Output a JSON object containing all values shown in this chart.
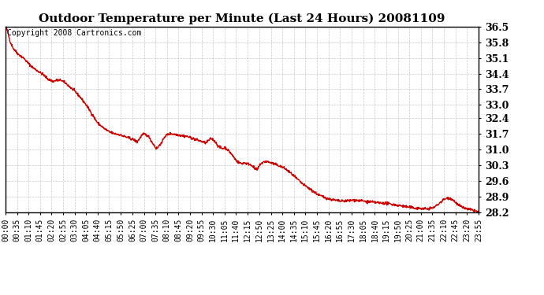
{
  "title": "Outdoor Temperature per Minute (Last 24 Hours) 20081109",
  "copyright_text": "Copyright 2008 Cartronics.com",
  "line_color": "#cc0000",
  "bg_color": "#ffffff",
  "plot_bg_color": "#ffffff",
  "grid_color": "#bbbbbb",
  "ylim": [
    28.2,
    36.5
  ],
  "yticks": [
    28.2,
    28.9,
    29.6,
    30.3,
    31.0,
    31.7,
    32.4,
    33.0,
    33.7,
    34.4,
    35.1,
    35.8,
    36.5
  ],
  "xtick_labels": [
    "00:00",
    "00:35",
    "01:10",
    "01:45",
    "02:20",
    "02:55",
    "03:30",
    "04:05",
    "04:40",
    "05:15",
    "05:50",
    "06:25",
    "07:00",
    "07:35",
    "08:10",
    "08:45",
    "09:20",
    "09:55",
    "10:30",
    "11:05",
    "11:40",
    "12:15",
    "12:50",
    "13:25",
    "14:00",
    "14:35",
    "15:10",
    "15:45",
    "16:20",
    "16:55",
    "17:30",
    "18:05",
    "18:40",
    "19:15",
    "19:50",
    "20:25",
    "21:00",
    "21:35",
    "22:10",
    "22:45",
    "23:20",
    "23:55"
  ],
  "line_width": 1.0,
  "title_fontsize": 11,
  "ytick_fontsize": 9,
  "xtick_fontsize": 7,
  "copyright_fontsize": 7
}
